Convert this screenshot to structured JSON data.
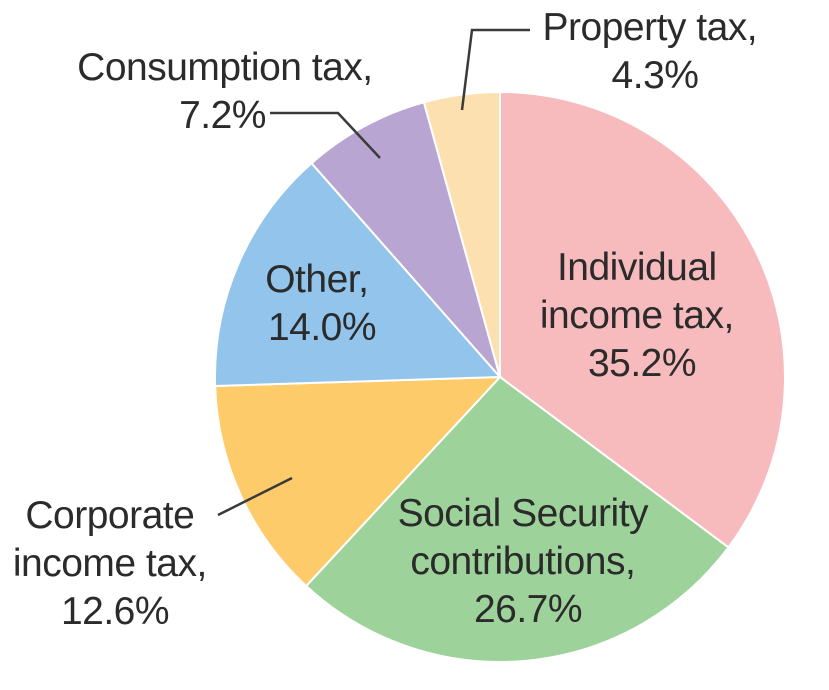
{
  "chart_data": {
    "type": "pie",
    "title": "",
    "slices": [
      {
        "label": "Individual income tax",
        "value": 35.2,
        "display": [
          "Individual",
          "income tax,",
          "35.2%"
        ],
        "color": "#F7BBBE"
      },
      {
        "label": "Social Security contributions",
        "value": 26.7,
        "display": [
          "Social Security",
          "contributions,",
          "26.7%"
        ],
        "color": "#9DD39A"
      },
      {
        "label": "Corporate income tax",
        "value": 12.6,
        "display": [
          "Corporate",
          "income tax,",
          "12.6%"
        ],
        "color": "#FDCB6A"
      },
      {
        "label": "Other",
        "value": 14.0,
        "display": [
          "Other,",
          "14.0%"
        ],
        "color": "#92C4EC"
      },
      {
        "label": "Consumption tax",
        "value": 7.2,
        "display": [
          "Consumption tax,",
          "7.2%"
        ],
        "color": "#B9A5D1"
      },
      {
        "label": "Property tax",
        "value": 4.3,
        "display": [
          "Property tax,",
          "4.3%"
        ],
        "color": "#FDE0B0"
      }
    ],
    "start": "12 o'clock",
    "direction": "clockwise"
  }
}
